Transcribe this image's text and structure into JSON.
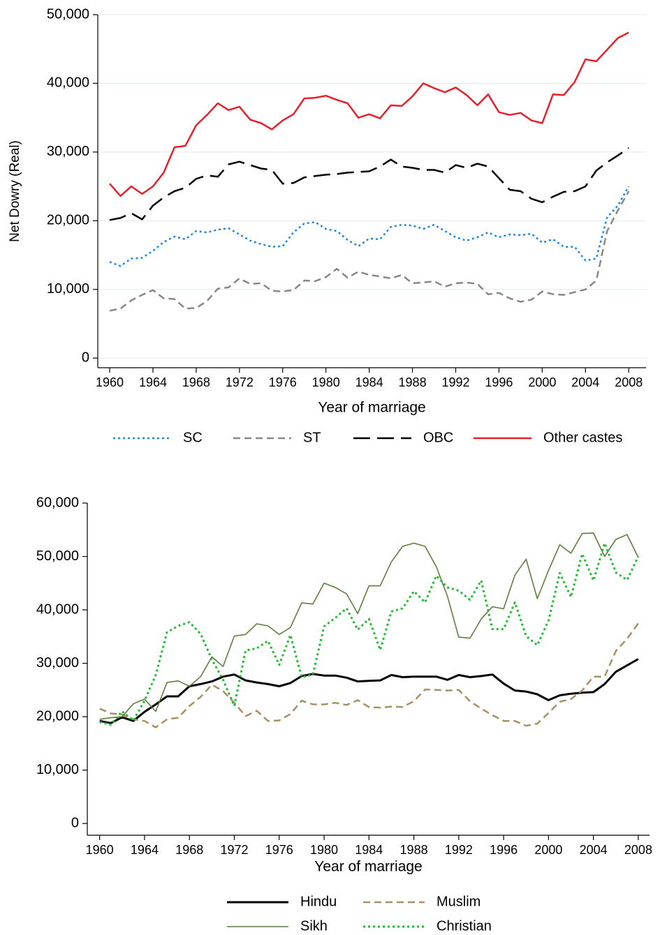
{
  "chart_data": [
    {
      "type": "line",
      "y_label": "Net Dowry (Real)",
      "x_label": "Year of marriage",
      "grid": true,
      "legend_columns": 4,
      "x": [
        1960,
        1961,
        1962,
        1963,
        1964,
        1965,
        1966,
        1967,
        1968,
        1969,
        1970,
        1971,
        1972,
        1973,
        1974,
        1975,
        1976,
        1977,
        1978,
        1979,
        1980,
        1981,
        1982,
        1983,
        1984,
        1985,
        1986,
        1987,
        1988,
        1989,
        1990,
        1991,
        1992,
        1993,
        1994,
        1995,
        1996,
        1997,
        1998,
        1999,
        2000,
        2001,
        2002,
        2003,
        2004,
        2005,
        2006,
        2007,
        2008
      ],
      "xlim": [
        1958.9,
        2009.6
      ],
      "xticks": [
        1960,
        1964,
        1968,
        1972,
        1976,
        1980,
        1984,
        1988,
        1992,
        1996,
        2000,
        2004,
        2008
      ],
      "ylim": [
        -1400,
        50000
      ],
      "yticks": [
        0,
        {
          "value": 10000,
          "label": "10,000"
        },
        {
          "value": 20000,
          "label": "20,000"
        },
        {
          "value": 30000,
          "label": "30,000"
        },
        {
          "value": 40000,
          "label": "40,000"
        },
        {
          "value": 50000,
          "label": "50,000"
        }
      ],
      "series": [
        {
          "name": "SC",
          "color": "#1e88e5",
          "dash": "dotted",
          "values": [
            14000,
            13400,
            14500,
            14600,
            15600,
            16900,
            17700,
            17300,
            18500,
            18300,
            18700,
            18900,
            18000,
            17100,
            16600,
            16200,
            16300,
            18300,
            19600,
            19800,
            18800,
            18500,
            17200,
            16300,
            17400,
            17300,
            19100,
            19400,
            19300,
            18800,
            19400,
            18500,
            17600,
            17100,
            17600,
            18300,
            17600,
            18000,
            17900,
            18100,
            16800,
            17300,
            16200,
            16200,
            14200,
            14500,
            20500,
            22200,
            25000
          ]
        },
        {
          "name": "ST",
          "color": "#888888",
          "dash": "dashed",
          "values": [
            6900,
            7200,
            8400,
            9200,
            9900,
            8700,
            8600,
            7200,
            7300,
            8300,
            10100,
            10300,
            11600,
            10800,
            10900,
            9800,
            9700,
            9900,
            11300,
            11200,
            11800,
            13000,
            11700,
            12600,
            12100,
            11900,
            11600,
            12100,
            10900,
            11000,
            11200,
            10400,
            10900,
            11000,
            10800,
            9300,
            9500,
            8700,
            8200,
            8500,
            9700,
            9300,
            9200,
            9600,
            10000,
            11300,
            18500,
            21500,
            24300
          ]
        },
        {
          "name": "OBC",
          "color": "#000000",
          "dash": "longdash",
          "values": [
            20100,
            20400,
            21100,
            20200,
            22200,
            23400,
            24300,
            24800,
            26100,
            26600,
            26400,
            28200,
            28600,
            28100,
            27600,
            27400,
            25400,
            25500,
            26300,
            26500,
            26700,
            26800,
            27000,
            27100,
            27200,
            27900,
            28900,
            27900,
            27700,
            27400,
            27400,
            27000,
            28100,
            27700,
            28300,
            27900,
            26200,
            24500,
            24300,
            23200,
            22700,
            23500,
            24200,
            24300,
            25000,
            27300,
            28500,
            29500,
            30600
          ]
        },
        {
          "name": "Other castes",
          "color": "#e8202a",
          "dash": "solid",
          "values": [
            25400,
            23600,
            25000,
            23900,
            25000,
            27000,
            30700,
            30900,
            33900,
            35400,
            37100,
            36100,
            36600,
            34700,
            34200,
            33300,
            34600,
            35500,
            37800,
            37900,
            38200,
            37600,
            37100,
            35000,
            35500,
            34900,
            36800,
            36700,
            38100,
            40000,
            39300,
            38700,
            39400,
            38300,
            36800,
            38400,
            35800,
            35400,
            35700,
            34600,
            34200,
            38400,
            38300,
            40200,
            43500,
            43200,
            44900,
            46600,
            47400
          ]
        }
      ]
    },
    {
      "type": "line",
      "x_label": "Year of marriage",
      "grid": false,
      "legend_columns": 2,
      "x": [
        1960,
        1961,
        1962,
        1963,
        1964,
        1965,
        1966,
        1967,
        1968,
        1969,
        1970,
        1971,
        1972,
        1973,
        1974,
        1975,
        1976,
        1977,
        1978,
        1979,
        1980,
        1981,
        1982,
        1983,
        1984,
        1985,
        1986,
        1987,
        1988,
        1989,
        1990,
        1991,
        1992,
        1993,
        1994,
        1995,
        1996,
        1997,
        1998,
        1999,
        2000,
        2001,
        2002,
        2003,
        2004,
        2005,
        2006,
        2007,
        2008
      ],
      "xlim": [
        1958.9,
        2009
      ],
      "xticks": [
        1960,
        1964,
        1968,
        1972,
        1976,
        1980,
        1984,
        1988,
        1992,
        1996,
        2000,
        2004,
        2008
      ],
      "ylim": [
        -2200,
        60000
      ],
      "yticks": [
        0,
        {
          "value": 10000,
          "label": "10,000"
        },
        {
          "value": 20000,
          "label": "20,000"
        },
        {
          "value": 30000,
          "label": "30,000"
        },
        {
          "value": 40000,
          "label": "40,000"
        },
        {
          "value": 50000,
          "label": "50,000"
        },
        {
          "value": 60000,
          "label": "60,000"
        }
      ],
      "series": [
        {
          "name": "Hindu",
          "color": "#000000",
          "dash": "solid",
          "width": 3,
          "values": [
            19200,
            18800,
            19900,
            19200,
            20900,
            22300,
            23800,
            23800,
            25700,
            26100,
            26600,
            27500,
            27900,
            26800,
            26400,
            26100,
            25700,
            26300,
            27600,
            28000,
            27700,
            27700,
            27300,
            26600,
            26700,
            26800,
            27800,
            27400,
            27500,
            27500,
            27500,
            26900,
            27800,
            27400,
            27600,
            27900,
            26200,
            24900,
            24700,
            24200,
            23100,
            24000,
            24300,
            24500,
            24600,
            26100,
            28400,
            29600,
            30800
          ]
        },
        {
          "name": "Muslim",
          "color": "#a89060",
          "dash": "dashed",
          "width": 2.5,
          "values": [
            21500,
            20600,
            20400,
            19500,
            19200,
            18000,
            19500,
            19800,
            22000,
            23700,
            26000,
            24800,
            22600,
            20100,
            21100,
            19200,
            19300,
            20500,
            23000,
            22300,
            22300,
            22600,
            22200,
            23100,
            21800,
            21700,
            21900,
            21800,
            22900,
            25100,
            25000,
            24900,
            25000,
            22900,
            21500,
            20300,
            19200,
            19200,
            18300,
            18700,
            20700,
            22800,
            23300,
            24900,
            27500,
            27500,
            32300,
            34600,
            37500
          ]
        },
        {
          "name": "Sikh",
          "color": "#5b7f3c",
          "dash": "solid",
          "width": 1.6,
          "values": [
            19500,
            19800,
            20000,
            22400,
            23300,
            21000,
            26400,
            26700,
            25700,
            27500,
            31200,
            29400,
            35100,
            35400,
            37400,
            37000,
            35400,
            36700,
            41300,
            41100,
            45000,
            44200,
            43000,
            39300,
            44500,
            44500,
            49000,
            51900,
            52500,
            51900,
            48100,
            42500,
            34900,
            34700,
            38300,
            40600,
            40200,
            46500,
            49500,
            42100,
            47400,
            52200,
            50600,
            54300,
            54400,
            50000,
            53200,
            54100,
            49800
          ]
        },
        {
          "name": "Christian",
          "color": "#22bb33",
          "dash": "dotted",
          "width": 3,
          "values": [
            19000,
            18500,
            21000,
            19300,
            23000,
            27800,
            35800,
            37000,
            37700,
            35500,
            30700,
            26900,
            22000,
            32400,
            32800,
            34200,
            29700,
            35300,
            27400,
            27900,
            36900,
            38500,
            40300,
            36300,
            38300,
            32500,
            39700,
            40300,
            43500,
            41400,
            46400,
            44200,
            43600,
            41900,
            45500,
            36400,
            36400,
            41400,
            35100,
            33400,
            38000,
            46900,
            42400,
            50500,
            45500,
            52500,
            47000,
            45600,
            50000
          ]
        }
      ]
    }
  ]
}
